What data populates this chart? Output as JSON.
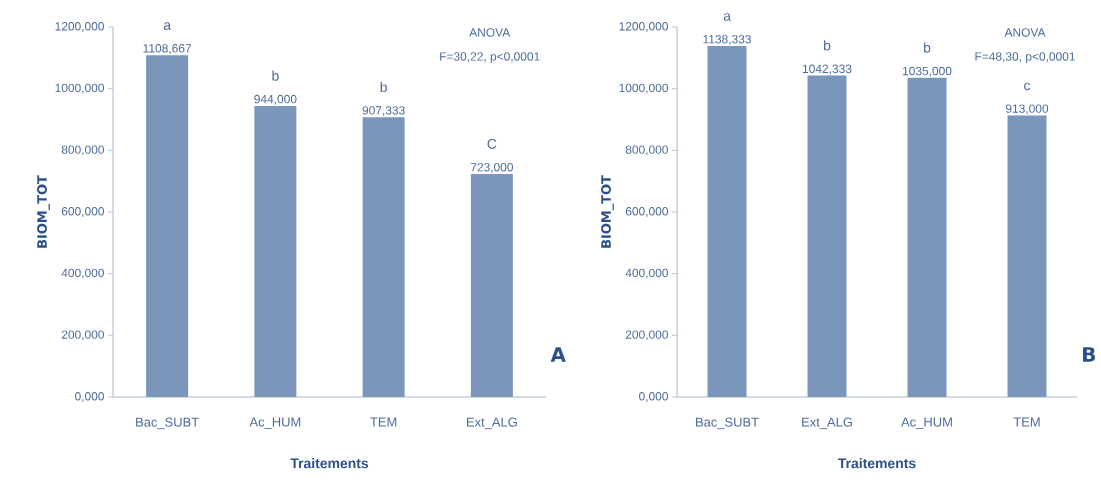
{
  "chart_data": [
    {
      "type": "bar",
      "title": "A",
      "xlabel": "Traitements",
      "ylabel": "BIOM_TOT",
      "categories": [
        "Bac_SUBT",
        "Ac_HUM",
        "TEM",
        "Ext_ALG"
      ],
      "values": [
        1108.667,
        944.0,
        907.333,
        723.0
      ],
      "value_labels": [
        "1108,667",
        "944,000",
        "907,333",
        "723,000"
      ],
      "color": "#7a96bb",
      "ylim": [
        0,
        1200
      ],
      "yticks": [
        {
          "value": 0,
          "label": "0,000"
        },
        {
          "value": 200,
          "label": "200,000"
        },
        {
          "value": 400,
          "label": "400,000"
        },
        {
          "value": 600,
          "label": "600,000"
        },
        {
          "value": 800,
          "label": "800,000"
        },
        {
          "value": 1000,
          "label": "1000,000"
        },
        {
          "value": 1200,
          "label": "1200,000"
        }
      ],
      "annotations": [
        "ANOVA",
        "F=30,22, p<0,0001",
        "a",
        "b",
        "b",
        "C"
      ]
    },
    {
      "type": "bar",
      "title": "B",
      "xlabel": "Traitements",
      "ylabel": "BIOM_TOT",
      "categories": [
        "Bac_SUBT",
        "Ext_ALG",
        "Ac_HUM",
        "TEM"
      ],
      "values": [
        1138.333,
        1042.333,
        1035.0,
        913.0
      ],
      "value_labels": [
        "1138,333",
        "1042,333",
        "1035,000",
        "913,000"
      ],
      "color": "#7a96bb",
      "ylim": [
        0,
        1200
      ],
      "yticks": [
        {
          "value": 0,
          "label": "0,000"
        },
        {
          "value": 200,
          "label": "200,000"
        },
        {
          "value": 400,
          "label": "400,000"
        },
        {
          "value": 600,
          "label": "600,000"
        },
        {
          "value": 800,
          "label": "800,000"
        },
        {
          "value": 1000,
          "label": "1000,000"
        },
        {
          "value": 1200,
          "label": "1200,000"
        }
      ],
      "annotations": [
        "ANOVA",
        "F=48,30, p<0,0001",
        "a",
        "b",
        "b",
        "c"
      ]
    }
  ]
}
